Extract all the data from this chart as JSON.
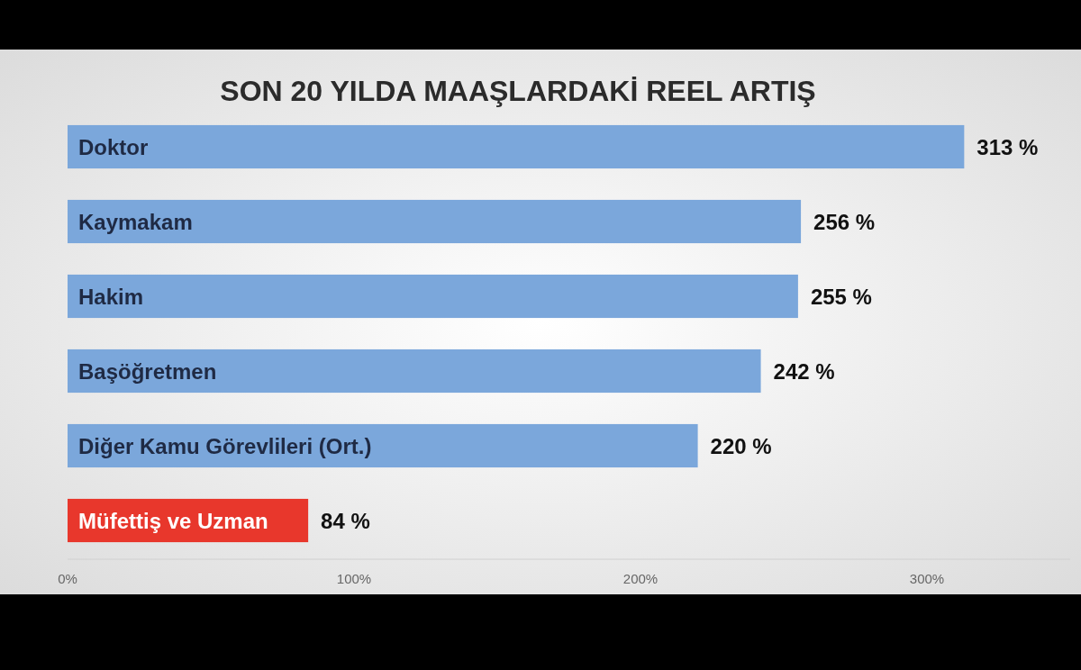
{
  "chart_data": {
    "type": "bar",
    "orientation": "horizontal",
    "title": "SON 20 YILDA MAAŞLARDAKİ REEL ARTIŞ",
    "categories": [
      "Doktor",
      "Kaymakam",
      "Hakim",
      "Başöğretmen",
      "Diğer Kamu Görevlileri (Ort.)",
      "Müfettiş ve Uzman"
    ],
    "values": [
      313,
      256,
      255,
      242,
      220,
      84
    ],
    "value_labels": [
      "313 %",
      "256 %",
      "255 %",
      "242 %",
      "220 %",
      "84 %"
    ],
    "colors": [
      "#7ba7db",
      "#7ba7db",
      "#7ba7db",
      "#7ba7db",
      "#7ba7db",
      "#e8372c"
    ],
    "xlim": [
      0,
      350
    ],
    "xticks": [
      {
        "value": 0,
        "label": "0%"
      },
      {
        "value": 100,
        "label": "100%"
      },
      {
        "value": 200,
        "label": "200%"
      },
      {
        "value": 300,
        "label": "300%"
      }
    ],
    "grid": false
  }
}
